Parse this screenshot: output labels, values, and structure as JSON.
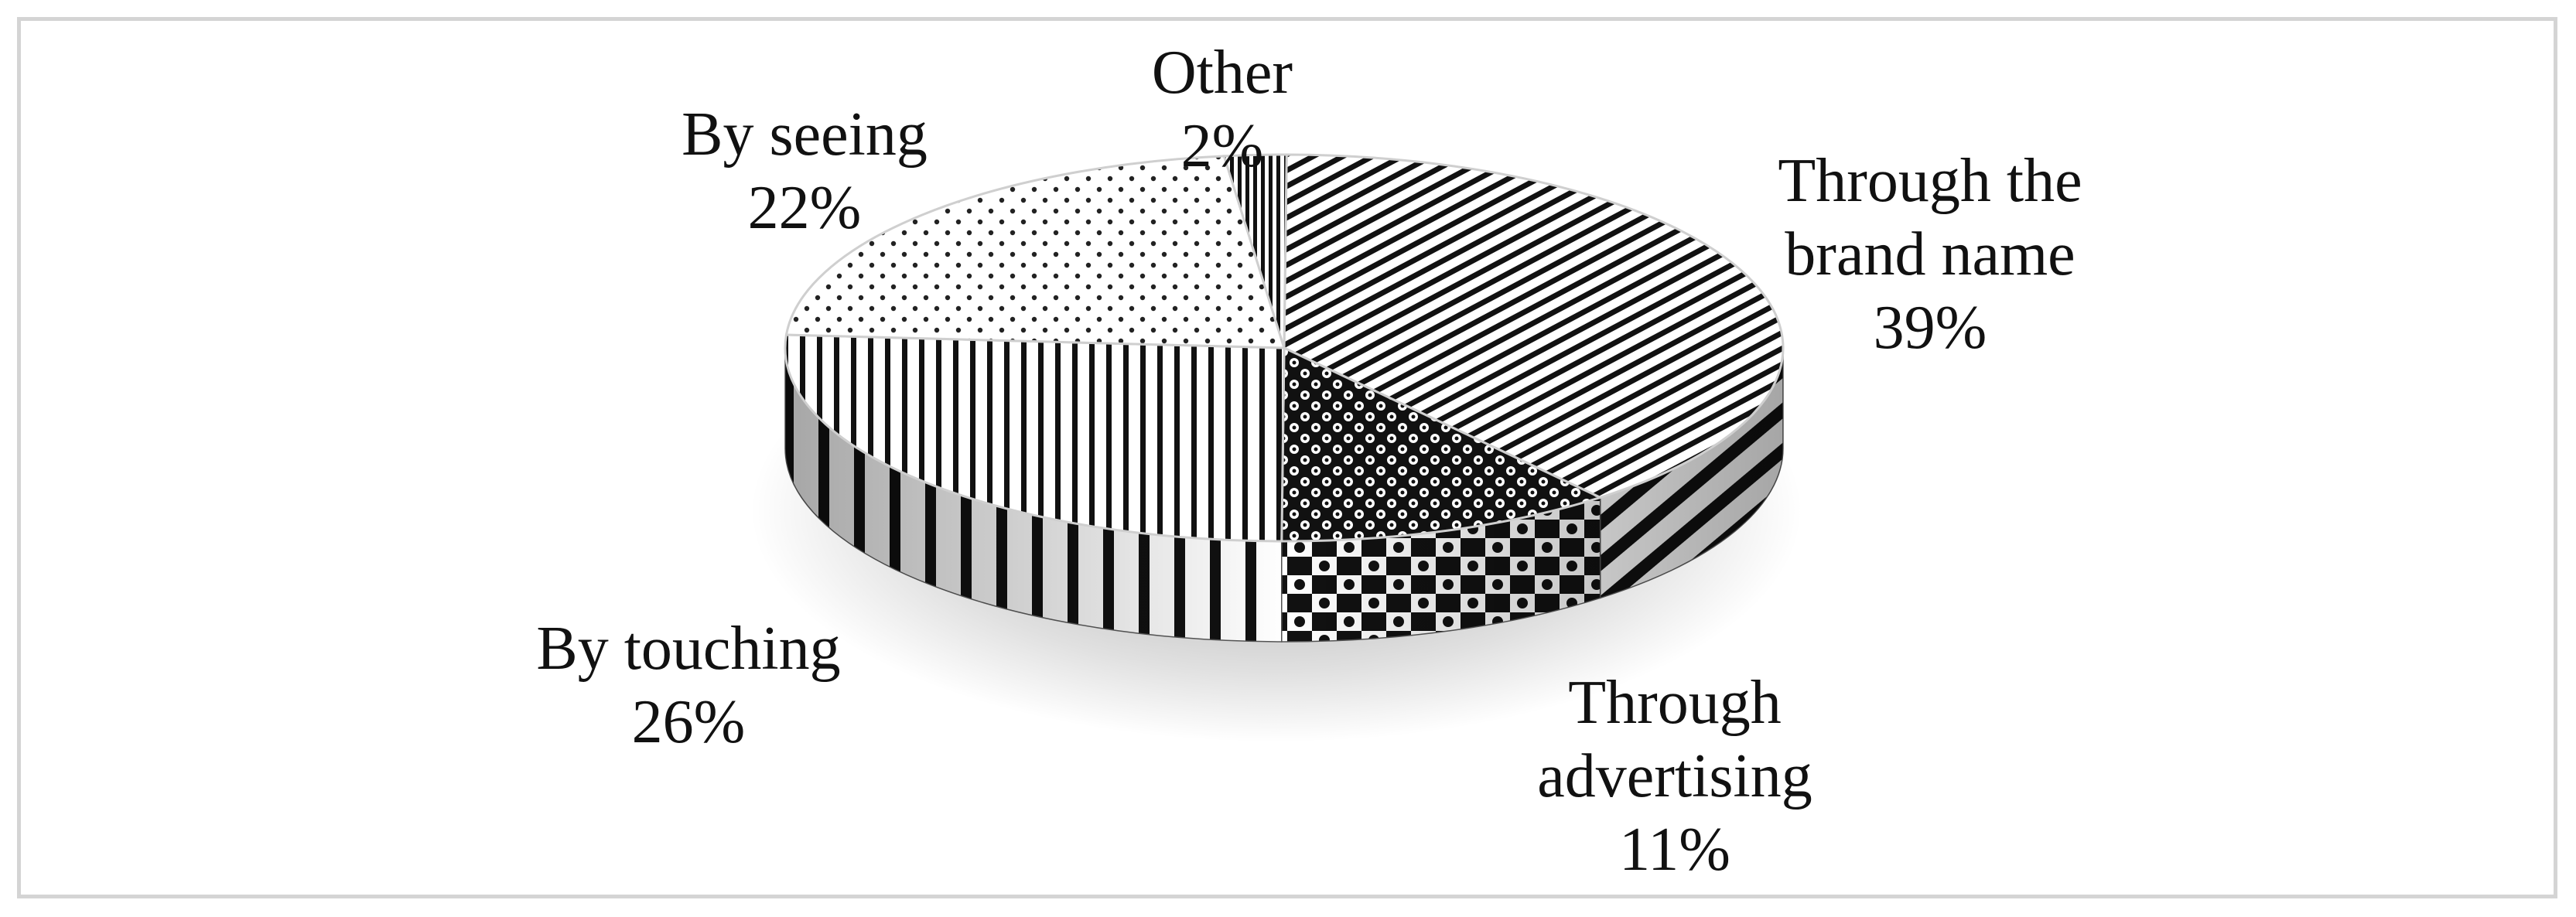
{
  "chart_data": {
    "type": "pie",
    "title": "",
    "style": "3d",
    "slices": [
      {
        "label_lines": [
          "Through the",
          "brand name"
        ],
        "percent_label": "39%",
        "value": 39,
        "pattern": "diagonal-lines"
      },
      {
        "label_lines": [
          "Through",
          "advertising"
        ],
        "percent_label": "11%",
        "value": 11,
        "pattern": "checker-dots"
      },
      {
        "label_lines": [
          "By touching"
        ],
        "percent_label": "26%",
        "value": 26,
        "pattern": "vertical-stripes"
      },
      {
        "label_lines": [
          "By seeing"
        ],
        "percent_label": "22%",
        "value": 22,
        "pattern": "dots"
      },
      {
        "label_lines": [
          "Other"
        ],
        "percent_label": "2%",
        "value": 2,
        "pattern": "dense-vertical"
      }
    ],
    "legend": "none",
    "colors": {
      "ink": "#111111",
      "frame": "#d4d4d4",
      "background": "#ffffff"
    }
  }
}
